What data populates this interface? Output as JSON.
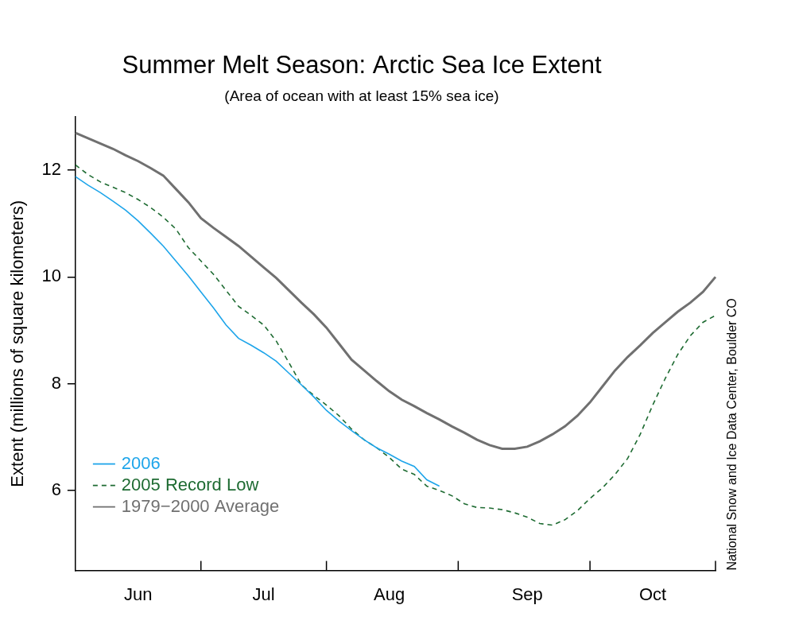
{
  "chart_data": {
    "type": "line",
    "title": "Summer Melt Season: Arctic Sea Ice Extent",
    "subtitle": "(Area of ocean with at least 15% sea ice)",
    "y_label": "Extent (millions of square kilometers)",
    "source": "National Snow and Ice Data Center, Boulder CO",
    "categories": [
      null,
      null,
      null,
      null,
      null,
      "Jun",
      null,
      null,
      null,
      null,
      null,
      null,
      null,
      null,
      null,
      "Jul",
      null,
      null,
      null,
      null,
      null,
      null,
      null,
      null,
      null,
      "Aug",
      null,
      null,
      null,
      null,
      null,
      null,
      null,
      null,
      null,
      null,
      "Sep",
      null,
      null,
      null,
      null,
      null,
      null,
      null,
      null,
      null,
      "Oct",
      null,
      null,
      null,
      null,
      null
    ],
    "series": [
      {
        "name": "2006",
        "color": "#1ea5ea",
        "line_style": "solid",
        "values": [
          11.88,
          11.72,
          11.58,
          11.42,
          11.25,
          11.05,
          10.82,
          10.58,
          10.3,
          10.02,
          9.72,
          9.42,
          9.1,
          8.85,
          8.72,
          8.58,
          8.42,
          8.2,
          7.98,
          7.75,
          7.5,
          7.3,
          7.12,
          6.95,
          6.8,
          6.68,
          6.55,
          6.45,
          6.2,
          6.08,
          null,
          null,
          null,
          null,
          null,
          null,
          null,
          null,
          null,
          null,
          null,
          null,
          null,
          null,
          null,
          null,
          null,
          null,
          null,
          null,
          null,
          null
        ]
      },
      {
        "name": "2005 Record Low",
        "color": "#1e6b32",
        "line_style": "dashed",
        "values": [
          12.1,
          11.92,
          11.78,
          11.68,
          11.58,
          11.45,
          11.3,
          11.12,
          10.9,
          10.55,
          10.3,
          10.05,
          9.75,
          9.45,
          9.28,
          9.1,
          8.8,
          8.4,
          7.98,
          7.78,
          7.6,
          7.4,
          7.15,
          6.95,
          6.8,
          6.62,
          6.4,
          6.3,
          6.08,
          6.0,
          5.9,
          5.75,
          5.68,
          5.67,
          5.64,
          5.58,
          5.5,
          5.38,
          5.35,
          5.45,
          5.62,
          5.85,
          6.05,
          6.3,
          6.6,
          7.05,
          7.6,
          8.1,
          8.55,
          8.9,
          9.15,
          9.28
        ]
      },
      {
        "name": "1979−2000 Average",
        "color": "#707070",
        "line_style": "solid",
        "values": [
          12.7,
          12.6,
          12.5,
          12.4,
          12.28,
          12.17,
          12.04,
          11.9,
          11.65,
          11.4,
          11.1,
          10.92,
          10.75,
          10.58,
          10.38,
          10.18,
          9.98,
          9.75,
          9.52,
          9.3,
          9.05,
          8.75,
          8.45,
          8.25,
          8.05,
          7.86,
          7.7,
          7.58,
          7.45,
          7.33,
          7.2,
          7.08,
          6.95,
          6.85,
          6.78,
          6.78,
          6.82,
          6.92,
          7.05,
          7.2,
          7.4,
          7.65,
          7.95,
          8.25,
          8.5,
          8.72,
          8.95,
          9.15,
          9.35,
          9.52,
          9.72,
          10.0
        ]
      }
    ],
    "ylim": [
      4.5,
      13
    ],
    "yticks": [
      6,
      8,
      10,
      12
    ],
    "grid": false,
    "legend": "lower left"
  }
}
